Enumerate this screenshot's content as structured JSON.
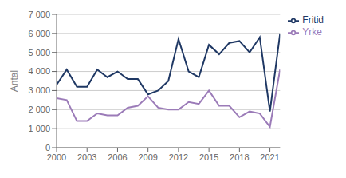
{
  "chart_data": {
    "type": "line",
    "x": [
      2000,
      2001,
      2002,
      2003,
      2004,
      2005,
      2006,
      2007,
      2008,
      2009,
      2010,
      2011,
      2012,
      2013,
      2014,
      2015,
      2016,
      2017,
      2018,
      2019,
      2020,
      2021,
      2022
    ],
    "series": [
      {
        "name": "Fritid",
        "color": "#1F3864",
        "values": [
          3300,
          4100,
          3200,
          3200,
          4100,
          3700,
          4000,
          3600,
          3600,
          2800,
          3000,
          3500,
          5700,
          4000,
          3700,
          5400,
          4900,
          5500,
          5600,
          5000,
          5800,
          1900,
          6000
        ]
      },
      {
        "name": "Yrke",
        "color": "#9B7BB8",
        "values": [
          2600,
          2500,
          1400,
          1400,
          1800,
          1700,
          1700,
          2100,
          2200,
          2700,
          2100,
          2000,
          2000,
          2400,
          2300,
          3000,
          2200,
          2200,
          1600,
          1900,
          1800,
          1100,
          4100
        ]
      }
    ],
    "y_label": "Antal",
    "xlim": [
      2000,
      2022
    ],
    "xticks": [
      2000,
      2003,
      2006,
      2009,
      2012,
      2015,
      2018,
      2021
    ],
    "ylim": [
      0,
      7000
    ],
    "yticks": [
      0,
      {
        "value": 1000,
        "label": "1 000"
      },
      {
        "value": 2000,
        "label": "2 000"
      },
      {
        "value": 3000,
        "label": "3 000"
      },
      {
        "value": 4000,
        "label": "4 000"
      },
      {
        "value": 5000,
        "label": "5 000"
      },
      {
        "value": 6000,
        "label": "6 000"
      },
      {
        "value": 7000,
        "label": "7 000"
      }
    ],
    "grid": true,
    "legend": "right"
  }
}
